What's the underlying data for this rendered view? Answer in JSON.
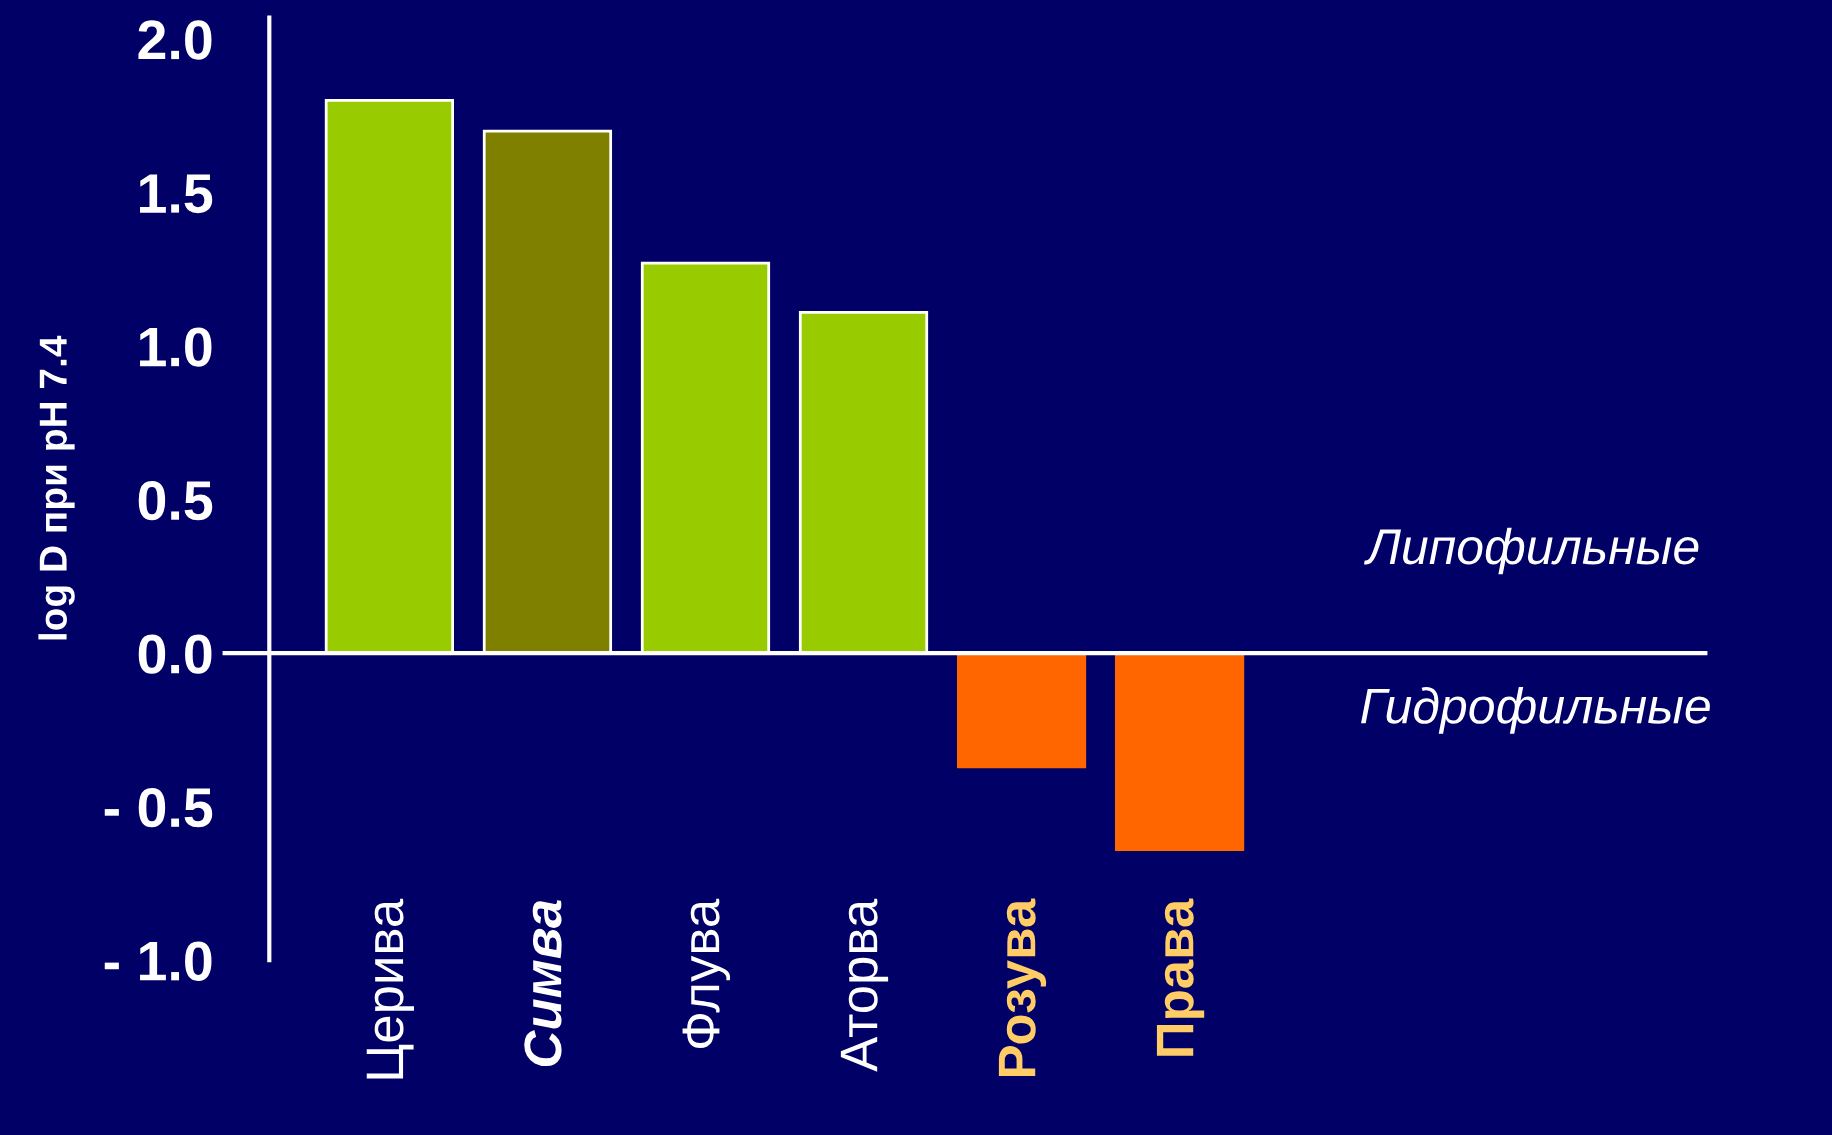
{
  "chart_data": {
    "type": "bar",
    "ylabel": "log D при pH 7.4",
    "categories": [
      "Церива",
      "Симва",
      "Флува",
      "Аторва",
      "Розува",
      "Права"
    ],
    "values": [
      1.8,
      1.7,
      1.27,
      1.11,
      -0.37,
      -0.64
    ],
    "colors": [
      "#99cc00",
      "#808000",
      "#99cc00",
      "#99cc00",
      "#ff6600",
      "#ff6600"
    ],
    "ylim": [
      -1.0,
      2.07
    ],
    "yticks": [
      {
        "value": -1.0,
        "label": "- 1.0"
      },
      {
        "value": -0.5,
        "label": "- 0.5"
      },
      {
        "value": 0.0,
        "label": "0.0"
      },
      {
        "value": 0.5,
        "label": "0.5"
      },
      {
        "value": 1.0,
        "label": "1.0"
      },
      {
        "value": 1.5,
        "label": "1.5"
      },
      {
        "value": 2.0,
        "label": "2.0"
      }
    ],
    "ref_lines": [
      {
        "axis": "y",
        "value": 0,
        "color": "#ffffff"
      }
    ],
    "annotations": [
      "Липофильные",
      "Гидрофильные"
    ],
    "grid": false
  }
}
